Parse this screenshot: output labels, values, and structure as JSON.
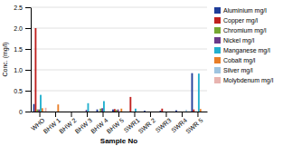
{
  "chart_data": {
    "type": "bar",
    "categories": [
      "WHO",
      "BHW 1",
      "BHW 2",
      "BHW 3",
      "BHW 4",
      "BHW 5",
      "SWR1",
      "SWR 2",
      "SWR3",
      "SWR4",
      "SWR 5"
    ],
    "series": [
      {
        "name": "Aluminium mg/l",
        "color": "#1f3d99",
        "values": [
          0.18,
          0.0,
          0.0,
          0.0,
          0.05,
          0.05,
          0.0,
          0.02,
          0.02,
          0.03,
          0.92
        ]
      },
      {
        "name": "Copper mg/l",
        "color": "#c0211f",
        "values": [
          2.0,
          0.0,
          0.0,
          0.0,
          0.0,
          0.06,
          0.35,
          0.0,
          0.07,
          0.0,
          0.05
        ]
      },
      {
        "name": "Chromium mg/l",
        "color": "#76a832",
        "values": [
          0.05,
          0.0,
          0.0,
          0.0,
          0.07,
          0.04,
          0.0,
          0.0,
          0.0,
          0.0,
          0.0
        ]
      },
      {
        "name": "Nickel mg/l",
        "color": "#6b3a8a",
        "values": [
          0.05,
          0.0,
          0.0,
          0.04,
          0.08,
          0.05,
          0.0,
          0.0,
          0.0,
          0.0,
          0.0
        ]
      },
      {
        "name": "Manganese mg/l",
        "color": "#22b0ce",
        "values": [
          0.4,
          0.0,
          0.0,
          0.2,
          0.25,
          0.0,
          0.07,
          0.0,
          0.0,
          0.0,
          0.91
        ]
      },
      {
        "name": "Cobalt mg/l",
        "color": "#e87e28",
        "values": [
          0.08,
          0.17,
          0.0,
          0.0,
          0.0,
          0.07,
          0.0,
          0.0,
          0.0,
          0.0,
          0.06
        ]
      },
      {
        "name": "Silver mg/l",
        "color": "#9ec4e0",
        "values": [
          0.0,
          0.0,
          0.0,
          0.0,
          0.0,
          0.0,
          0.0,
          0.0,
          0.0,
          0.04,
          0.0
        ]
      },
      {
        "name": "Molybdenum mg/l",
        "color": "#e8b4b0",
        "values": [
          0.09,
          0.0,
          0.0,
          0.0,
          0.0,
          0.0,
          0.0,
          0.0,
          0.0,
          0.0,
          0.0
        ]
      }
    ],
    "x_label": "Sample No",
    "y_label": "Conc. (mg/l)",
    "ylim": [
      0,
      2.5
    ],
    "yticks": [
      0,
      0.5,
      {
        "value": 1,
        "label": "1.0"
      },
      1.5,
      {
        "value": 2,
        "label": "2.0"
      },
      2.5
    ],
    "grid": true,
    "legend": "right"
  }
}
